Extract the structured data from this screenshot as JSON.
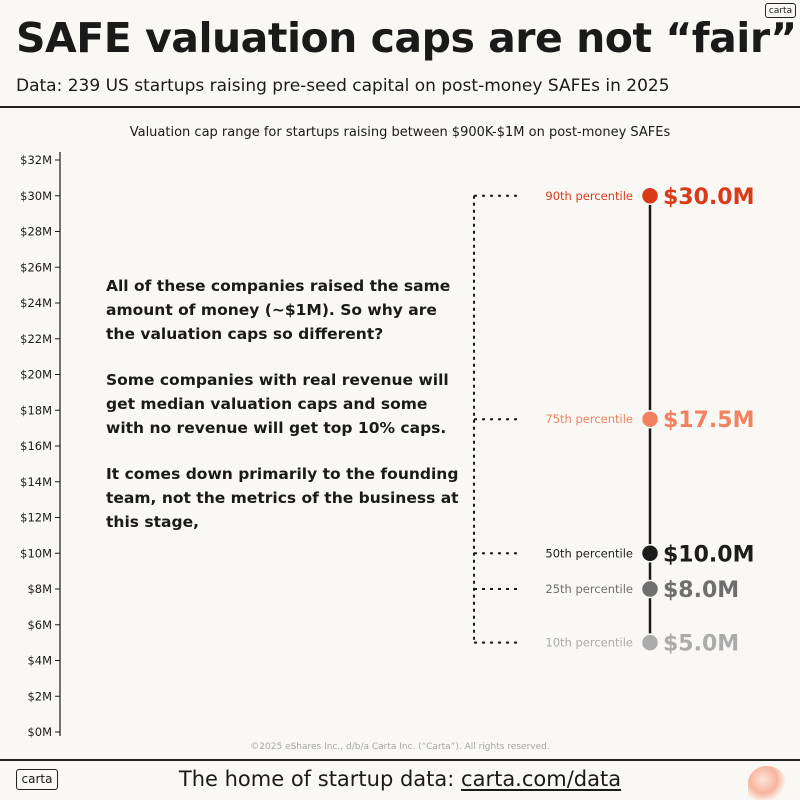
{
  "header": {
    "logo_text": "carta",
    "title": "SAFE valuation caps are not “fair”",
    "subtitle": "Data: 239 US startups raising pre-seed capital on post-money SAFEs in 2025"
  },
  "chart_data": {
    "type": "range",
    "title": "Valuation cap range for startups raising between $900K-$1M on post-money SAFEs",
    "unit": "$M",
    "ylim": [
      0,
      32
    ],
    "yticks": [
      0,
      2,
      4,
      6,
      8,
      10,
      12,
      14,
      16,
      18,
      20,
      22,
      24,
      26,
      28,
      30,
      32
    ],
    "ytick_labels": [
      "$0M",
      "$2M",
      "$4M",
      "$6M",
      "$8M",
      "$10M",
      "$12M",
      "$14M",
      "$16M",
      "$18M",
      "$20M",
      "$22M",
      "$24M",
      "$26M",
      "$28M",
      "$30M",
      "$32M"
    ],
    "points": [
      {
        "label": "90th percentile",
        "value": 30.0,
        "value_label": "$30.0M",
        "color": "#d93a17"
      },
      {
        "label": "75th percentile",
        "value": 17.5,
        "value_label": "$17.5M",
        "color": "#f2825f"
      },
      {
        "label": "50th percentile",
        "value": 10.0,
        "value_label": "$10.0M",
        "color": "#1c1c1c"
      },
      {
        "label": "25th percentile",
        "value": 8.0,
        "value_label": "$8.0M",
        "color": "#6e6e6e"
      },
      {
        "label": "10th percentile",
        "value": 5.0,
        "value_label": "$5.0M",
        "color": "#ababab"
      }
    ]
  },
  "commentary": {
    "p1": "All of these companies raised the same amount of money (~$1M). So why are the valuation caps so different?",
    "p2": "Some companies with real revenue will get median valuation caps and some with no revenue will get top 10% caps.",
    "p3": "It comes down primarily to the founding team, not the metrics of the business at this stage,"
  },
  "copyright": "©2025 eShares Inc., d/b/a Carta Inc. (“Carta”). All rights reserved.",
  "footer": {
    "logo_text": "carta",
    "text": "The home of startup data: ",
    "link": "carta.com/data"
  }
}
